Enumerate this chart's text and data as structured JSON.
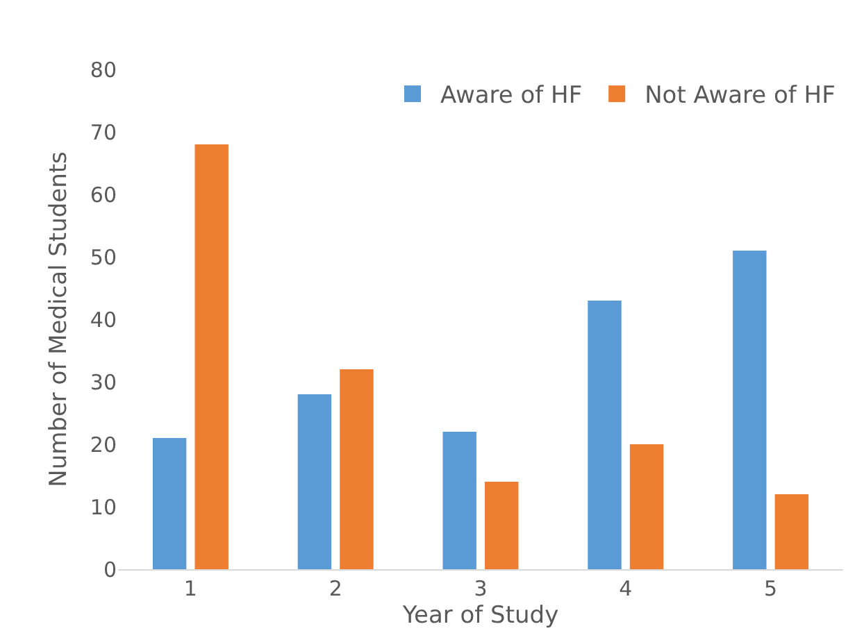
{
  "chart_data": {
    "type": "bar",
    "xlabel": "Year of Study",
    "ylabel": "Number of Medical Students",
    "categories": [
      "1",
      "2",
      "3",
      "4",
      "5"
    ],
    "series": [
      {
        "name": "Aware of HF",
        "color": "#5b9bd5",
        "values": [
          21,
          28,
          22,
          43,
          51
        ]
      },
      {
        "name": "Not Aware of HF",
        "color": "#ed7d31",
        "values": [
          68,
          32,
          14,
          20,
          12
        ]
      }
    ],
    "ylim": [
      0,
      80
    ],
    "yticks": [
      0,
      10,
      20,
      30,
      40,
      50,
      60,
      70,
      80
    ],
    "grid": false,
    "legend": "top right"
  }
}
